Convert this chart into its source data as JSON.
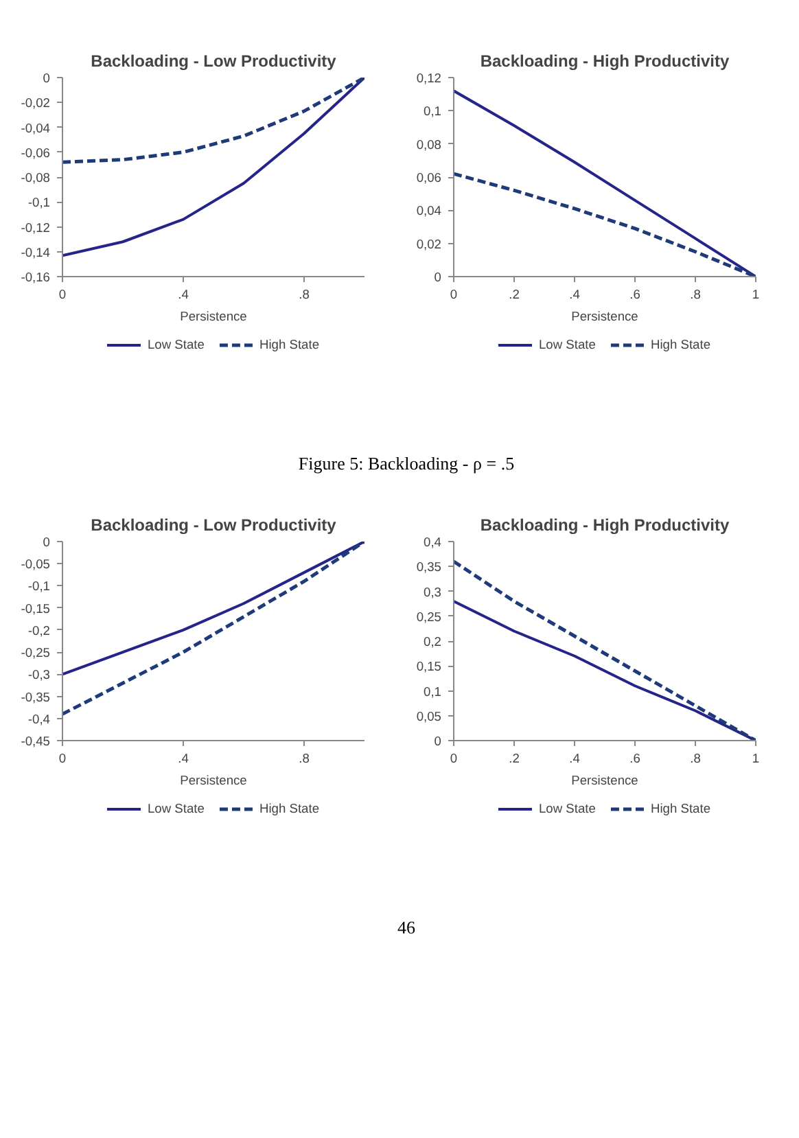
{
  "chart_data": [
    {
      "type": "line",
      "title": "Backloading - Low Productivity",
      "xlabel": "Persistence",
      "x": [
        0,
        0.2,
        0.4,
        0.6,
        0.8,
        1
      ],
      "xlim": [
        0,
        1
      ],
      "xticks": [
        0,
        {
          "value": 0.4,
          "label": ".4"
        },
        {
          "value": 0.8,
          "label": ".8"
        }
      ],
      "ylim": [
        -0.16,
        0
      ],
      "yticks": [
        0,
        {
          "value": -0.02,
          "label": "-0,02"
        },
        {
          "value": -0.04,
          "label": "-0,04"
        },
        {
          "value": -0.06,
          "label": "-0,06"
        },
        {
          "value": -0.08,
          "label": "-0,08"
        },
        {
          "value": -0.1,
          "label": "-0,1"
        },
        {
          "value": -0.12,
          "label": "-0,12"
        },
        {
          "value": -0.14,
          "label": "-0,14"
        },
        {
          "value": -0.16,
          "label": "-0,16"
        }
      ],
      "grid": false,
      "legend": "bottom",
      "series": [
        {
          "name": "Low State",
          "color": "#24248a",
          "line_style": "solid",
          "values": [
            -0.143,
            -0.132,
            -0.114,
            -0.085,
            -0.045,
            0
          ]
        },
        {
          "name": "High State",
          "color": "#1f3a78",
          "line_style": "dashed",
          "values": [
            -0.068,
            -0.066,
            -0.06,
            -0.047,
            -0.027,
            0
          ]
        }
      ]
    },
    {
      "type": "line",
      "title": "Backloading - High Productivity",
      "xlabel": "Persistence",
      "x": [
        0,
        0.2,
        0.4,
        0.6,
        0.8,
        1
      ],
      "xlim": [
        0,
        1
      ],
      "xticks": [
        0,
        {
          "value": 0.2,
          "label": ".2"
        },
        {
          "value": 0.4,
          "label": ".4"
        },
        {
          "value": 0.6,
          "label": ".6"
        },
        {
          "value": 0.8,
          "label": ".8"
        },
        1
      ],
      "ylim": [
        0,
        0.12
      ],
      "yticks": [
        0,
        {
          "value": 0.02,
          "label": "0,02"
        },
        {
          "value": 0.04,
          "label": "0,04"
        },
        {
          "value": 0.06,
          "label": "0,06"
        },
        {
          "value": 0.08,
          "label": "0,08"
        },
        {
          "value": 0.1,
          "label": "0,1"
        },
        {
          "value": 0.12,
          "label": "0,12"
        }
      ],
      "grid": false,
      "legend": "bottom",
      "annotations": [
        "Figure 5: Backloading - ρ = .5"
      ],
      "series": [
        {
          "name": "Low State",
          "color": "#24248a",
          "line_style": "solid",
          "values": [
            0.112,
            0.091,
            0.069,
            0.046,
            0.023,
            0
          ]
        },
        {
          "name": "High State",
          "color": "#1f3a78",
          "line_style": "dashed",
          "values": [
            0.062,
            0.052,
            0.041,
            0.029,
            0.015,
            0
          ]
        }
      ]
    },
    {
      "type": "line",
      "title": "Backloading - Low Productivity",
      "xlabel": "Persistence",
      "x": [
        0,
        0.2,
        0.4,
        0.6,
        0.8,
        1
      ],
      "xlim": [
        0,
        1
      ],
      "xticks": [
        0,
        {
          "value": 0.4,
          "label": ".4"
        },
        {
          "value": 0.8,
          "label": ".8"
        }
      ],
      "ylim": [
        -0.45,
        0
      ],
      "yticks": [
        0,
        {
          "value": -0.05,
          "label": "-0,05"
        },
        {
          "value": -0.1,
          "label": "-0,1"
        },
        {
          "value": -0.15,
          "label": "-0,15"
        },
        {
          "value": -0.2,
          "label": "-0,2"
        },
        {
          "value": -0.25,
          "label": "-0,25"
        },
        {
          "value": -0.3,
          "label": "-0,3"
        },
        {
          "value": -0.35,
          "label": "-0,35"
        },
        {
          "value": -0.4,
          "label": "-0,4"
        },
        {
          "value": -0.45,
          "label": "-0,45"
        }
      ],
      "grid": false,
      "legend": "bottom",
      "series": [
        {
          "name": "Low State",
          "color": "#24248a",
          "line_style": "solid",
          "values": [
            -0.3,
            -0.25,
            -0.2,
            -0.14,
            -0.07,
            0
          ]
        },
        {
          "name": "High State",
          "color": "#1f3a78",
          "line_style": "dashed",
          "values": [
            -0.39,
            -0.32,
            -0.25,
            -0.17,
            -0.09,
            0
          ]
        }
      ]
    },
    {
      "type": "line",
      "title": "Backloading - High Productivity",
      "xlabel": "Persistence",
      "x": [
        0,
        0.2,
        0.4,
        0.6,
        0.8,
        1
      ],
      "xlim": [
        0,
        1
      ],
      "xticks": [
        0,
        {
          "value": 0.2,
          "label": ".2"
        },
        {
          "value": 0.4,
          "label": ".4"
        },
        {
          "value": 0.6,
          "label": ".6"
        },
        {
          "value": 0.8,
          "label": ".8"
        },
        1
      ],
      "ylim": [
        0,
        0.4
      ],
      "yticks": [
        0,
        {
          "value": 0.05,
          "label": "0,05"
        },
        {
          "value": 0.1,
          "label": "0,1"
        },
        {
          "value": 0.15,
          "label": "0,15"
        },
        {
          "value": 0.2,
          "label": "0,2"
        },
        {
          "value": 0.25,
          "label": "0,25"
        },
        {
          "value": 0.3,
          "label": "0,3"
        },
        {
          "value": 0.35,
          "label": "0,35"
        },
        {
          "value": 0.4,
          "label": "0,4"
        }
      ],
      "grid": false,
      "legend": "bottom",
      "annotations": [
        "46"
      ],
      "series": [
        {
          "name": "Low State",
          "color": "#24248a",
          "line_style": "solid",
          "values": [
            0.28,
            0.22,
            0.17,
            0.11,
            0.06,
            0
          ]
        },
        {
          "name": "High State",
          "color": "#1f3a78",
          "line_style": "dashed",
          "values": [
            0.36,
            0.28,
            0.21,
            0.14,
            0.07,
            0
          ]
        }
      ]
    }
  ]
}
